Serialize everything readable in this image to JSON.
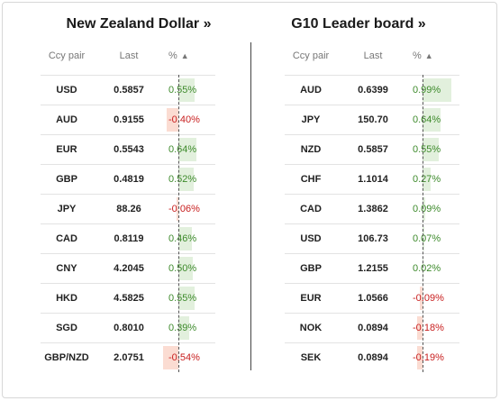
{
  "colors": {
    "positive": "#3d8a2b",
    "negative": "#c81e1e",
    "positive_bar": "#e2f0dd",
    "negative_bar": "#fbdcd2"
  },
  "left": {
    "title": "New Zealand Dollar »",
    "headers": {
      "pair": "Ccy pair",
      "last": "Last",
      "pct": "%",
      "sort_icon": "▲"
    },
    "rows": [
      {
        "pair": "USD",
        "last": "0.5857",
        "pct": "0.55%",
        "value": 0.55
      },
      {
        "pair": "AUD",
        "last": "0.9155",
        "pct": "-0.40%",
        "value": -0.4
      },
      {
        "pair": "EUR",
        "last": "0.5543",
        "pct": "0.64%",
        "value": 0.64
      },
      {
        "pair": "GBP",
        "last": "0.4819",
        "pct": "0.52%",
        "value": 0.52
      },
      {
        "pair": "JPY",
        "last": "88.26",
        "pct": "-0.06%",
        "value": -0.06
      },
      {
        "pair": "CAD",
        "last": "0.8119",
        "pct": "0.46%",
        "value": 0.46
      },
      {
        "pair": "CNY",
        "last": "4.2045",
        "pct": "0.50%",
        "value": 0.5
      },
      {
        "pair": "HKD",
        "last": "4.5825",
        "pct": "0.55%",
        "value": 0.55
      },
      {
        "pair": "SGD",
        "last": "0.8010",
        "pct": "0.39%",
        "value": 0.39
      },
      {
        "pair": "GBP/NZD",
        "last": "2.0751",
        "pct": "-0.54%",
        "value": -0.54
      }
    ]
  },
  "right": {
    "title": "G10 Leader board »",
    "headers": {
      "pair": "Ccy pair",
      "last": "Last",
      "pct": "%",
      "sort_icon": "▲"
    },
    "rows": [
      {
        "pair": "AUD",
        "last": "0.6399",
        "pct": "0.99%",
        "value": 0.99
      },
      {
        "pair": "JPY",
        "last": "150.70",
        "pct": "0.64%",
        "value": 0.64
      },
      {
        "pair": "NZD",
        "last": "0.5857",
        "pct": "0.55%",
        "value": 0.55
      },
      {
        "pair": "CHF",
        "last": "1.1014",
        "pct": "0.27%",
        "value": 0.27
      },
      {
        "pair": "CAD",
        "last": "1.3862",
        "pct": "0.09%",
        "value": 0.09
      },
      {
        "pair": "USD",
        "last": "106.73",
        "pct": "0.07%",
        "value": 0.07
      },
      {
        "pair": "GBP",
        "last": "1.2155",
        "pct": "0.02%",
        "value": 0.02
      },
      {
        "pair": "EUR",
        "last": "1.0566",
        "pct": "-0.09%",
        "value": -0.09
      },
      {
        "pair": "NOK",
        "last": "0.0894",
        "pct": "-0.18%",
        "value": -0.18
      },
      {
        "pair": "SEK",
        "last": "0.0894",
        "pct": "-0.19%",
        "value": -0.19
      }
    ]
  }
}
